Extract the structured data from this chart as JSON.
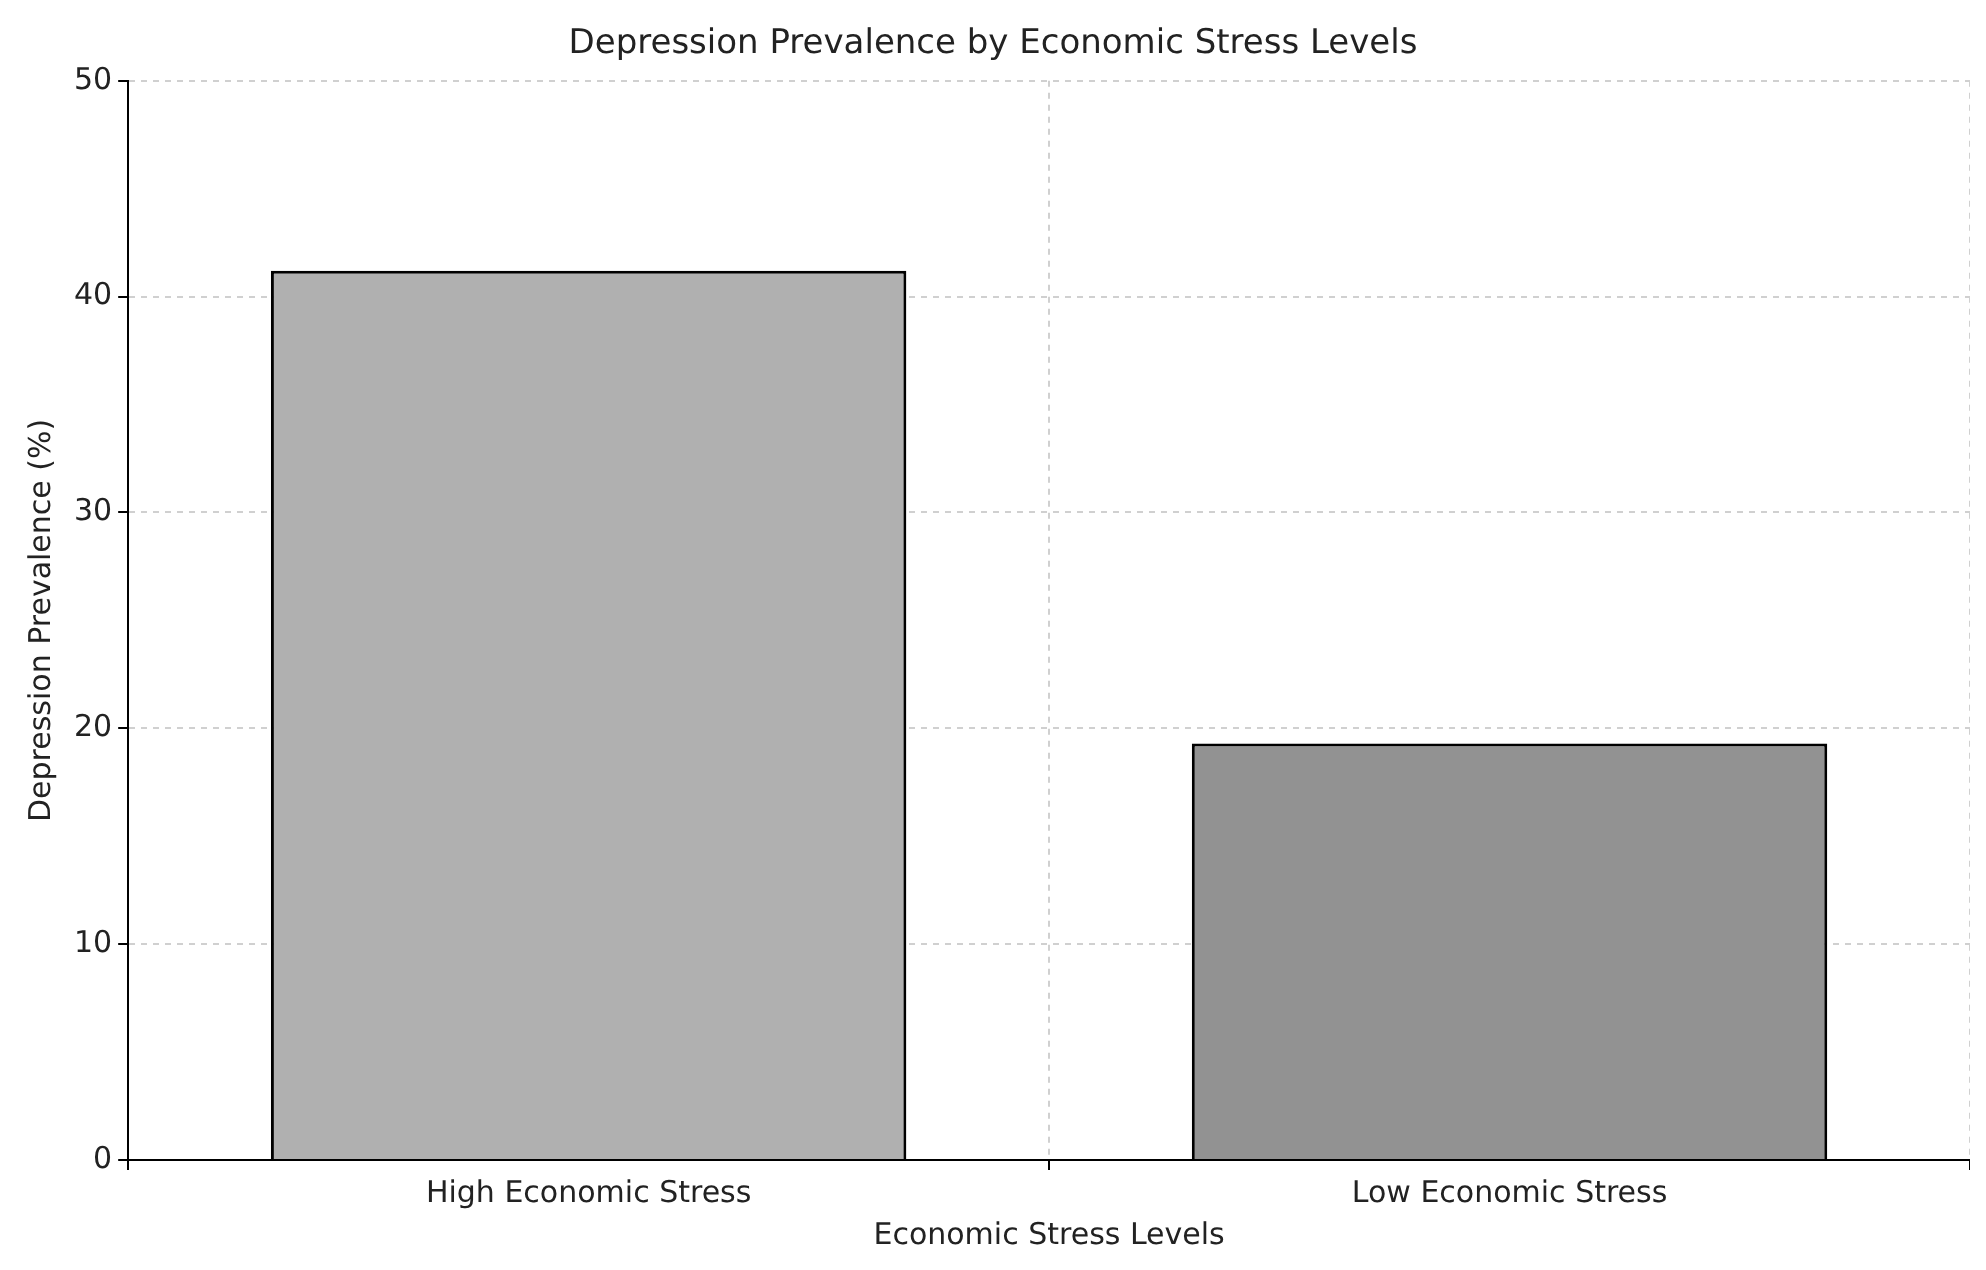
{
  "chart_data": {
    "type": "bar",
    "title": "Depression Prevalence by Economic Stress Levels",
    "xlabel": "Economic Stress Levels",
    "ylabel": "Depression Prevalence (%)",
    "categories": [
      "High Economic Stress",
      "Low Economic Stress"
    ],
    "values": [
      41.2,
      19.3
    ],
    "colors": [
      "#b0b0b0",
      "#929292"
    ],
    "ylim": [
      0,
      50
    ],
    "yticks": [
      0,
      10,
      20,
      30,
      40,
      50
    ],
    "grid": true
  }
}
